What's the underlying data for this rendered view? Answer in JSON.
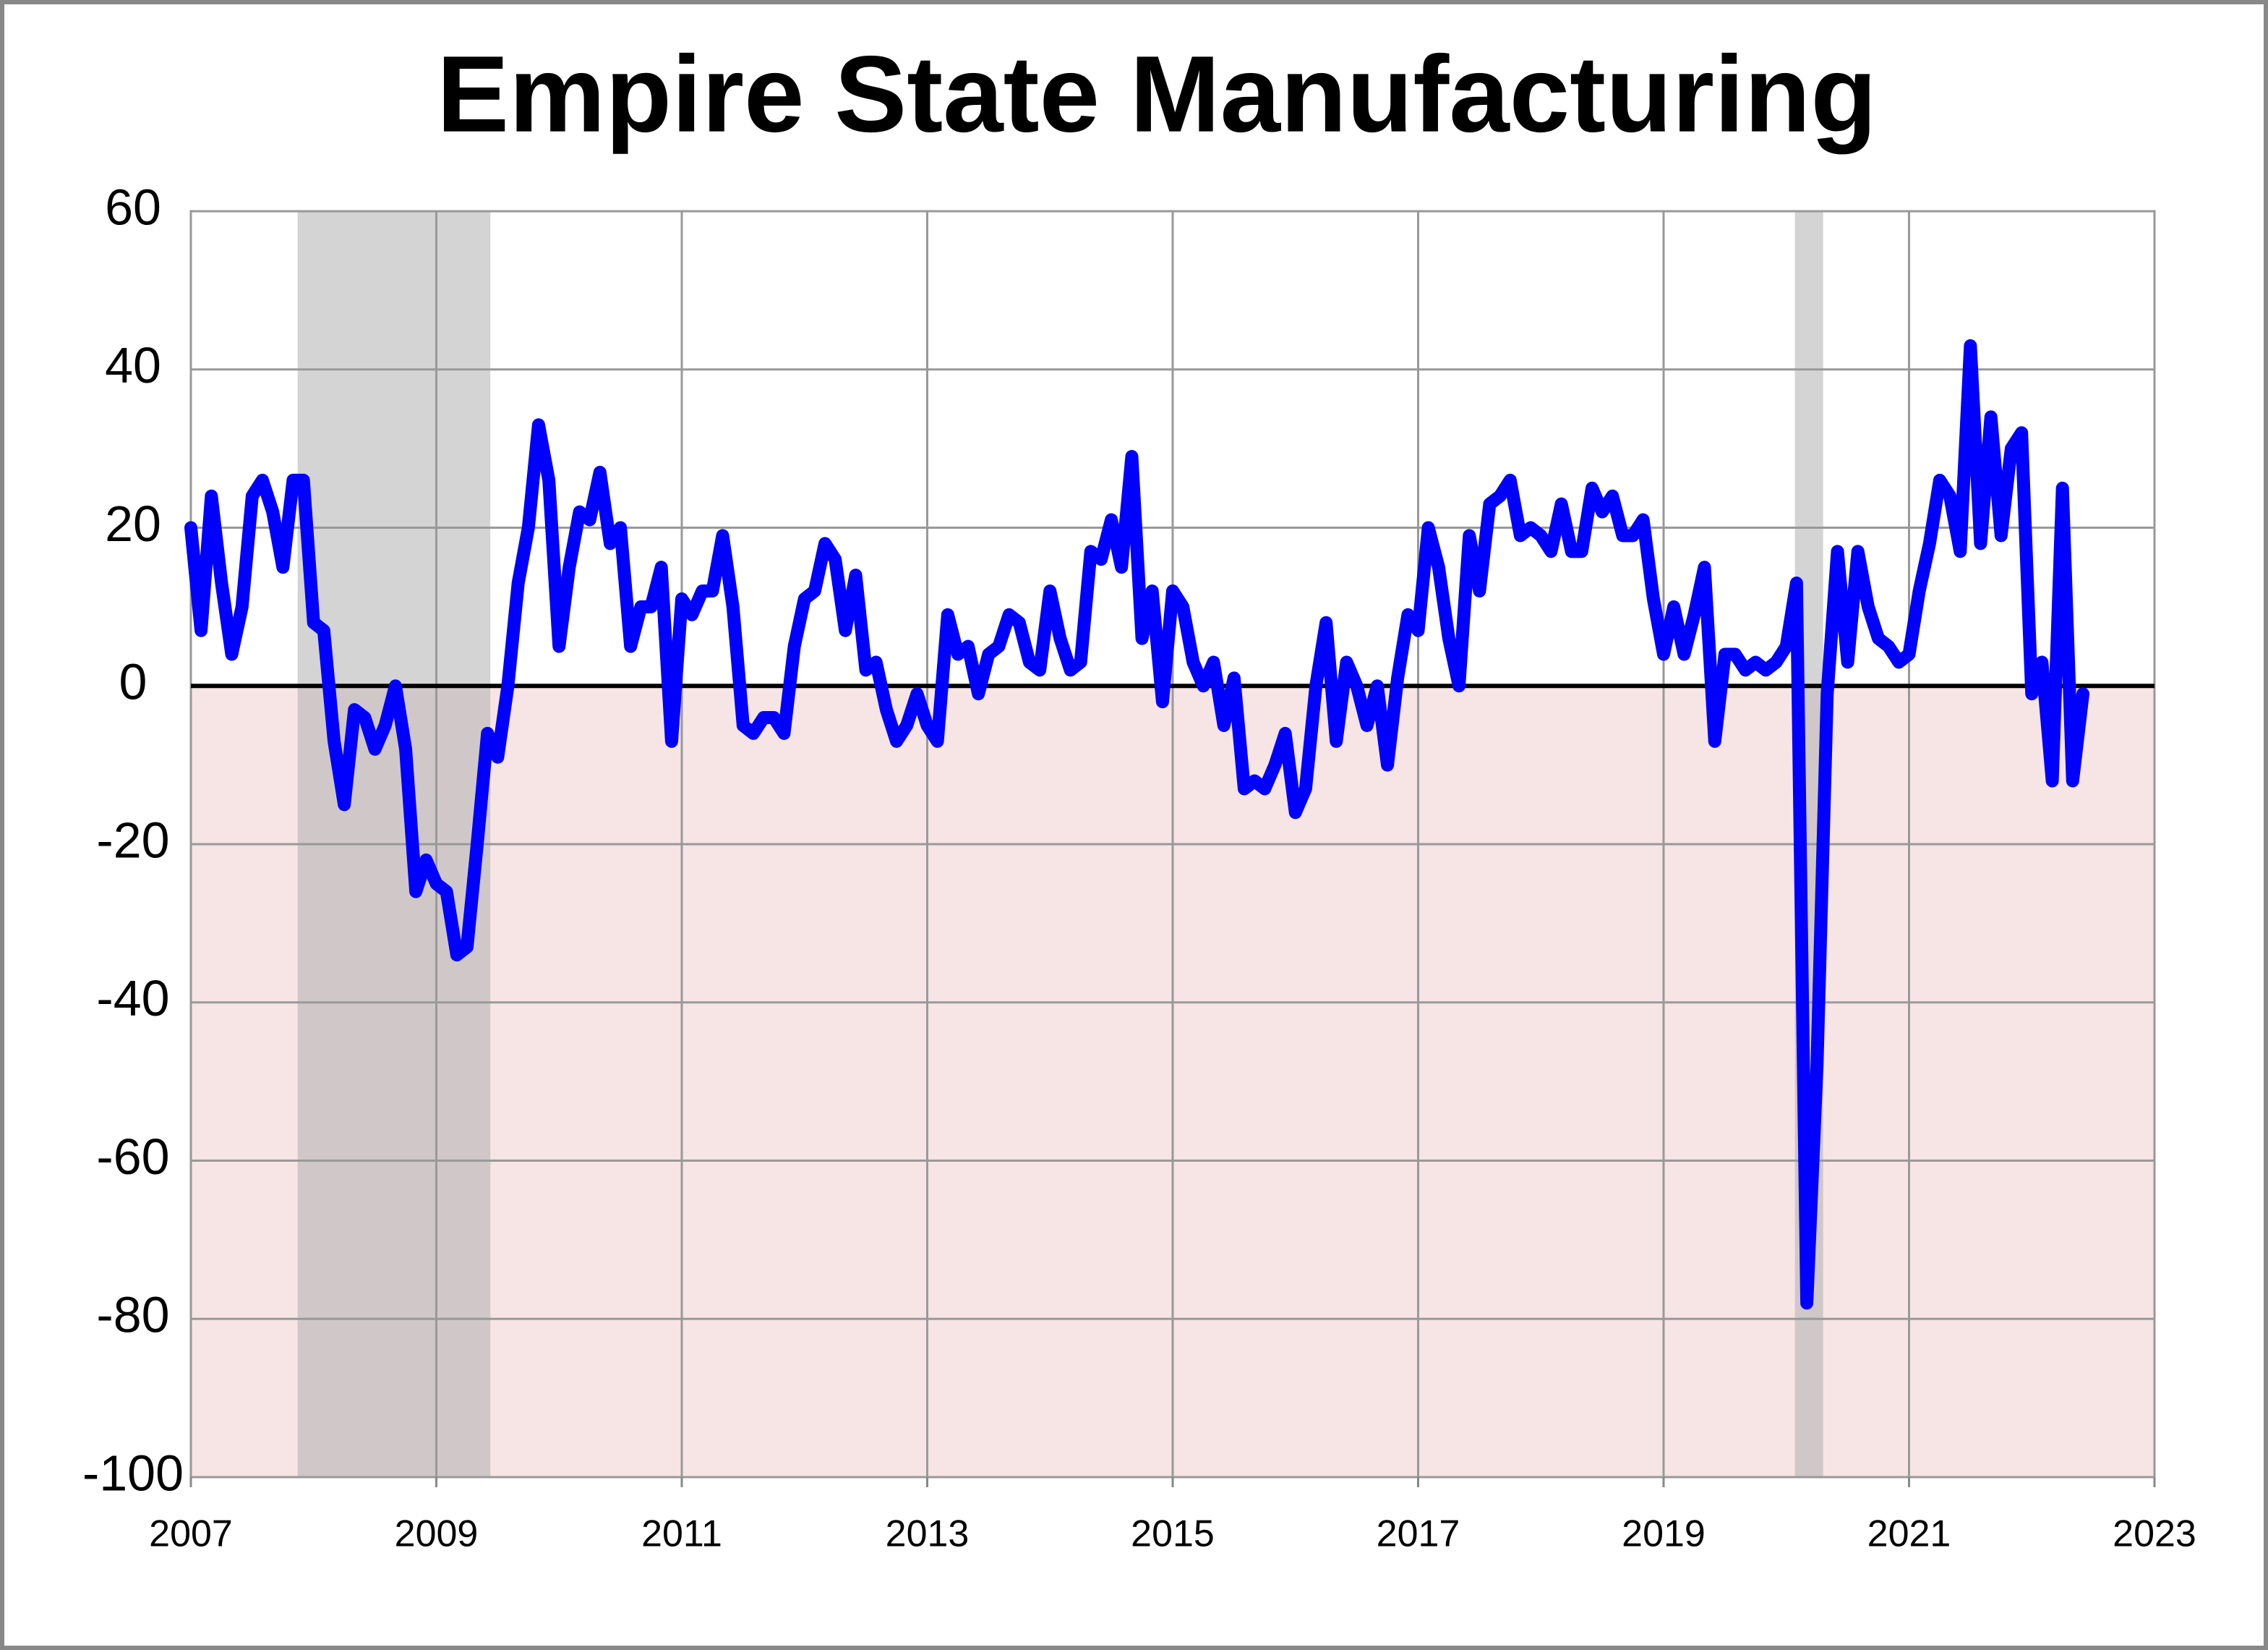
{
  "chart_data": {
    "type": "line",
    "title": "Empire State Manufacturing",
    "x": [
      2007.0,
      2007.083,
      2007.167,
      2007.25,
      2007.333,
      2007.417,
      2007.5,
      2007.583,
      2007.667,
      2007.75,
      2007.833,
      2007.917,
      2008.0,
      2008.083,
      2008.167,
      2008.25,
      2008.333,
      2008.417,
      2008.5,
      2008.583,
      2008.667,
      2008.75,
      2008.833,
      2008.917,
      2009.0,
      2009.083,
      2009.167,
      2009.25,
      2009.333,
      2009.417,
      2009.5,
      2009.583,
      2009.667,
      2009.75,
      2009.833,
      2009.917,
      2010.0,
      2010.083,
      2010.167,
      2010.25,
      2010.333,
      2010.417,
      2010.5,
      2010.583,
      2010.667,
      2010.75,
      2010.833,
      2010.917,
      2011.0,
      2011.083,
      2011.167,
      2011.25,
      2011.333,
      2011.417,
      2011.5,
      2011.583,
      2011.667,
      2011.75,
      2011.833,
      2011.917,
      2012.0,
      2012.083,
      2012.167,
      2012.25,
      2012.333,
      2012.417,
      2012.5,
      2012.583,
      2012.667,
      2012.75,
      2012.833,
      2012.917,
      2013.0,
      2013.083,
      2013.167,
      2013.25,
      2013.333,
      2013.417,
      2013.5,
      2013.583,
      2013.667,
      2013.75,
      2013.833,
      2013.917,
      2014.0,
      2014.083,
      2014.167,
      2014.25,
      2014.333,
      2014.417,
      2014.5,
      2014.583,
      2014.667,
      2014.75,
      2014.833,
      2014.917,
      2015.0,
      2015.083,
      2015.167,
      2015.25,
      2015.333,
      2015.417,
      2015.5,
      2015.583,
      2015.667,
      2015.75,
      2015.833,
      2015.917,
      2016.0,
      2016.083,
      2016.167,
      2016.25,
      2016.333,
      2016.417,
      2016.5,
      2016.583,
      2016.667,
      2016.75,
      2016.833,
      2016.917,
      2017.0,
      2017.083,
      2017.167,
      2017.25,
      2017.333,
      2017.417,
      2017.5,
      2017.583,
      2017.667,
      2017.75,
      2017.833,
      2017.917,
      2018.0,
      2018.083,
      2018.167,
      2018.25,
      2018.333,
      2018.417,
      2018.5,
      2018.583,
      2018.667,
      2018.75,
      2018.833,
      2018.917,
      2019.0,
      2019.083,
      2019.167,
      2019.25,
      2019.333,
      2019.417,
      2019.5,
      2019.583,
      2019.667,
      2019.75,
      2019.833,
      2019.917,
      2020.0,
      2020.083,
      2020.167,
      2020.25,
      2020.333,
      2020.417,
      2020.5,
      2020.583,
      2020.667,
      2020.75,
      2020.833,
      2020.917,
      2021.0,
      2021.083,
      2021.167,
      2021.25,
      2021.333,
      2021.417,
      2021.5,
      2021.583,
      2021.667,
      2021.75,
      2021.833,
      2021.917,
      2022.0,
      2022.083,
      2022.167,
      2022.25,
      2022.333,
      2022.417
    ],
    "series": [
      {
        "color": "#0000ff",
        "values": [
          20,
          7,
          24,
          13,
          4,
          10,
          24,
          26,
          22,
          15,
          26,
          26,
          8,
          7,
          -7,
          -15,
          -3,
          -4,
          -8,
          -5,
          0,
          -8,
          -26,
          -22,
          -25,
          -26,
          -34,
          -33,
          -20,
          -6,
          -9,
          0,
          13,
          20,
          33,
          26,
          5,
          15,
          22,
          21,
          27,
          18,
          20,
          5,
          10,
          10,
          15,
          -7,
          11,
          9,
          12,
          12,
          19,
          10,
          -5,
          -6,
          -4,
          -4,
          -6,
          5,
          11,
          12,
          18,
          16,
          7,
          14,
          2,
          3,
          -3,
          -7,
          -5,
          -1,
          -5,
          -7,
          9,
          4,
          5,
          -1,
          4,
          5,
          9,
          8,
          3,
          2,
          12,
          6,
          2,
          3,
          17,
          16,
          21,
          15,
          29,
          6,
          12,
          -2,
          12,
          10,
          3,
          0,
          3,
          -5,
          1,
          -13,
          -12,
          -13,
          -10,
          -6,
          -16,
          -13,
          0,
          8,
          -7,
          3,
          0,
          -5,
          0,
          -10,
          1,
          9,
          7,
          20,
          15,
          6,
          0,
          19,
          12,
          23,
          24,
          26,
          19,
          20,
          19,
          17,
          23,
          17,
          17,
          25,
          22,
          24,
          19,
          19,
          21,
          11,
          4,
          10,
          4,
          9,
          15,
          -7,
          4,
          4,
          2,
          3,
          2,
          3,
          5,
          13,
          -78,
          -48,
          -1,
          17,
          3,
          17,
          10,
          6,
          5,
          3,
          4,
          12,
          18,
          26,
          24,
          17,
          43,
          18,
          34,
          19,
          30,
          32,
          -1,
          3,
          -12,
          25,
          -12,
          -1
        ]
      }
    ],
    "xlim": [
      2007,
      2023
    ],
    "xticks": [
      2007,
      2009,
      2011,
      2013,
      2015,
      2017,
      2019,
      2021,
      2023
    ],
    "ylim": [
      -100,
      60
    ],
    "yticks": [
      -100,
      -80,
      -60,
      -40,
      -20,
      0,
      20,
      40,
      60
    ],
    "grid": true,
    "shaded_ranges": [
      [
        2007.87,
        2009.44
      ],
      [
        2020.07,
        2020.3
      ]
    ]
  }
}
